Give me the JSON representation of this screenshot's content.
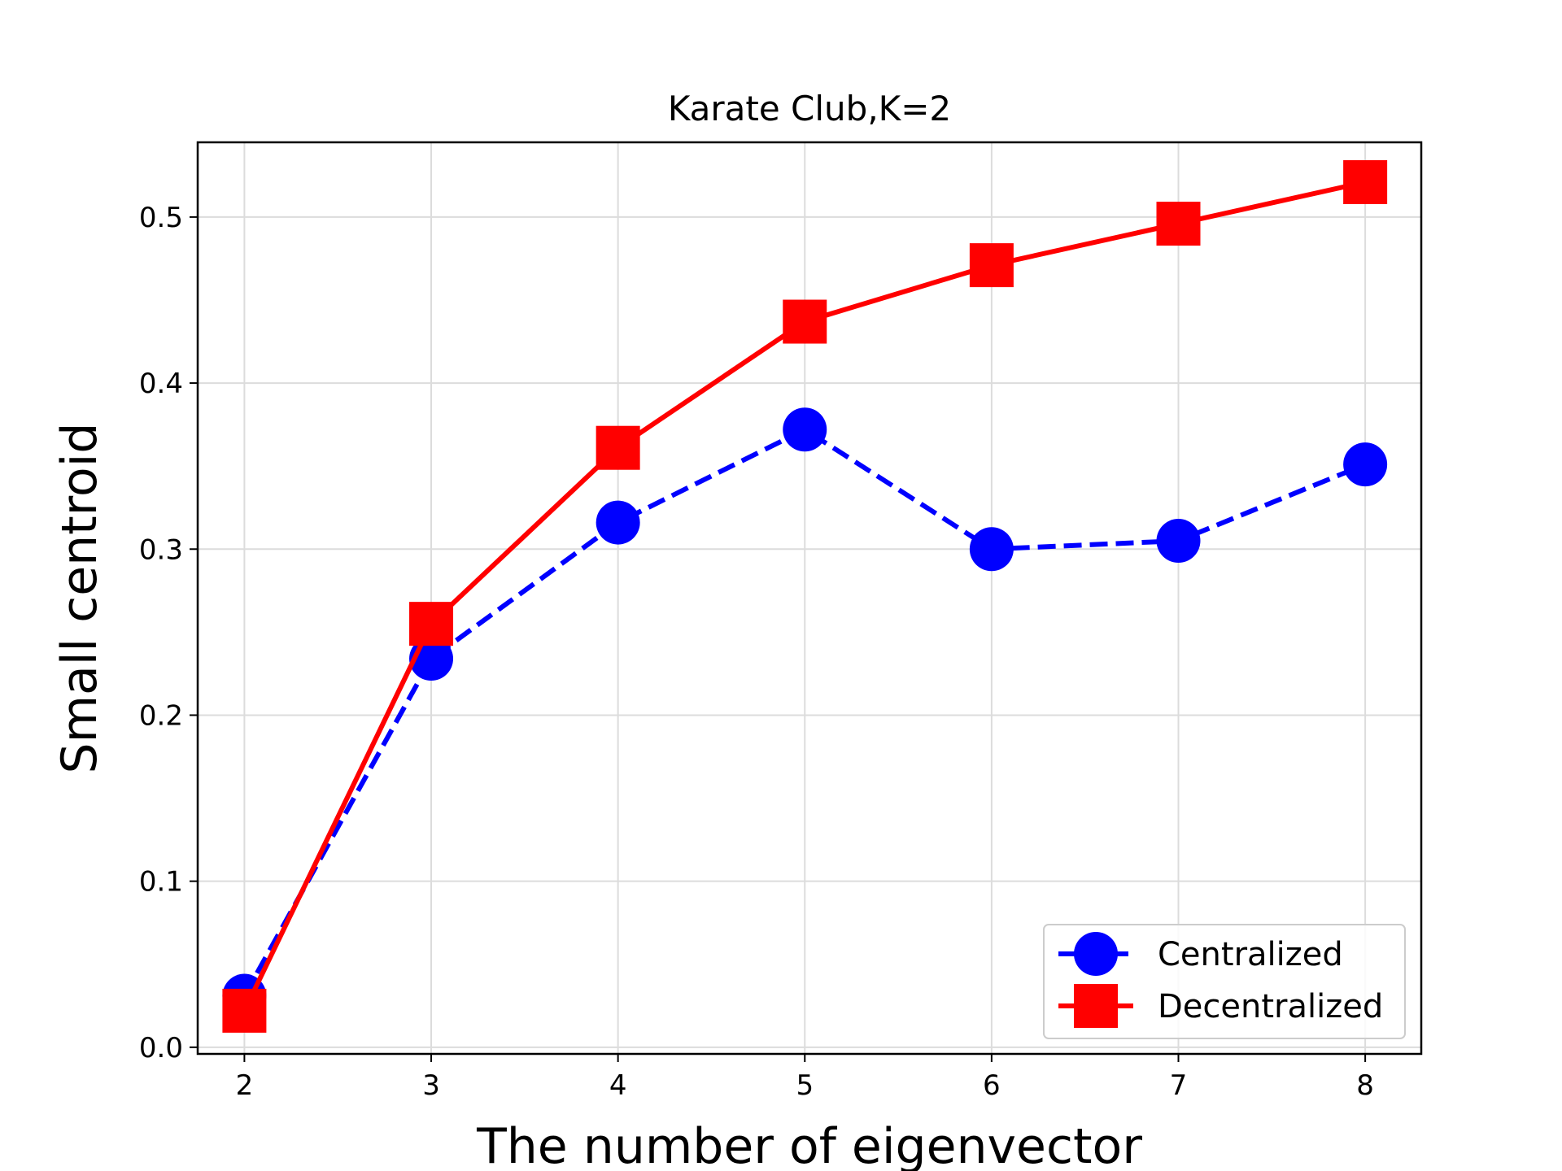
{
  "chart_data": {
    "type": "line",
    "title": "Karate Club,K=2",
    "xlabel": "The number of eigenvector",
    "ylabel": "Small centroid",
    "x": [
      2,
      3,
      4,
      5,
      6,
      7,
      8
    ],
    "xlim": [
      1.75,
      8.3
    ],
    "ylim": [
      -0.004,
      0.545
    ],
    "xticks": [
      "2",
      "3",
      "4",
      "5",
      "6",
      "7",
      "8"
    ],
    "yticks": [
      "0.0",
      "0.1",
      "0.2",
      "0.3",
      "0.4",
      "0.5"
    ],
    "ytick_values": [
      0.0,
      0.1,
      0.2,
      0.3,
      0.4,
      0.5
    ],
    "grid": true,
    "legend_position": "lower-right",
    "series": [
      {
        "name": "Centralized",
        "values": [
          0.031,
          0.234,
          0.316,
          0.372,
          0.3,
          0.305,
          0.351
        ],
        "color": "#0000ff",
        "line_style": "dashed",
        "marker": "circle"
      },
      {
        "name": "Decentralized",
        "values": [
          0.022,
          0.255,
          0.361,
          0.437,
          0.471,
          0.496,
          0.521
        ],
        "color": "#ff0000",
        "line_style": "solid",
        "marker": "square"
      }
    ]
  }
}
